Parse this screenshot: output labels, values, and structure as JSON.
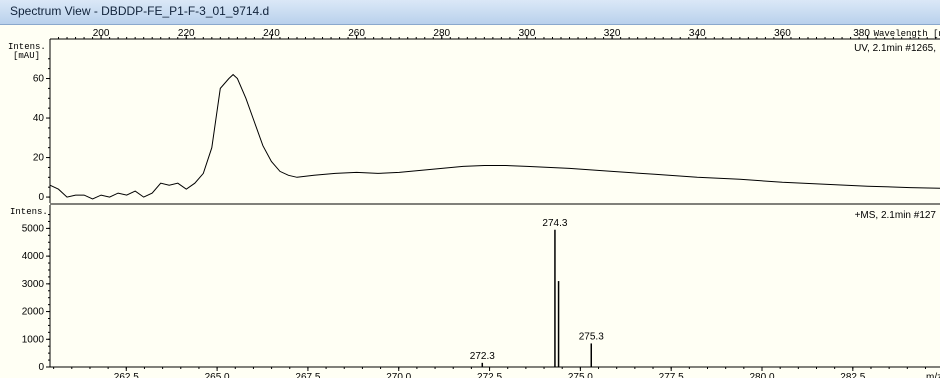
{
  "window": {
    "title": "Spectrum View - DBDDP-FE_P1-F-3_01_9714.d"
  },
  "colors": {
    "background": "#fffff4",
    "plot_line": "#000000",
    "titlebar": "#c8dbf1"
  },
  "chart_data": [
    {
      "type": "line",
      "name": "uv-spectrum",
      "ylabel": "Intens.\n[mAU]",
      "ylabel_lines": [
        "Intens.",
        "[mAU]"
      ],
      "xlabel": "Wavelength [nm]",
      "annotation": "UV, 2.1min #1265,",
      "xlim": [
        188,
        397
      ],
      "ylim": [
        -3,
        80
      ],
      "x_ticks": [
        "200",
        "220",
        "240",
        "260",
        "280",
        "300",
        "320",
        "340",
        "360",
        "380"
      ],
      "x_tick_values": [
        200,
        220,
        240,
        260,
        280,
        300,
        320,
        340,
        360,
        380
      ],
      "y_ticks": [
        "60",
        "40",
        "20",
        "0"
      ],
      "y_tick_values": [
        60,
        40,
        20,
        0
      ],
      "x": [
        188,
        190,
        192,
        194,
        196,
        198,
        200,
        202,
        204,
        206,
        208,
        210,
        212,
        214,
        216,
        218,
        220,
        222,
        224,
        226,
        228,
        230,
        231,
        232,
        234,
        236,
        238,
        240,
        242,
        244,
        246,
        248,
        250,
        255,
        260,
        265,
        270,
        275,
        280,
        285,
        290,
        295,
        300,
        310,
        320,
        330,
        340,
        350,
        360,
        370,
        380,
        390,
        397
      ],
      "y": [
        6,
        4,
        0,
        1,
        1,
        -1,
        1,
        0,
        2,
        1,
        3,
        0,
        2,
        7,
        6,
        7,
        4,
        7,
        12,
        25,
        55,
        60,
        62,
        60,
        50,
        38,
        26,
        18,
        13,
        11,
        10,
        10.5,
        11,
        12,
        12.5,
        12,
        12.5,
        13.5,
        14.5,
        15.5,
        16,
        16,
        15.5,
        14.5,
        13,
        11.5,
        10,
        9,
        7.5,
        6.5,
        5.5,
        4.8,
        4.5
      ]
    },
    {
      "type": "bar",
      "name": "ms-spectrum",
      "ylabel": "Intens.",
      "xlabel": "m/z",
      "annotation": "+MS, 2.1min #127",
      "xlim": [
        260.4,
        284.9
      ],
      "ylim": [
        0,
        5700
      ],
      "x_ticks": [
        "262.5",
        "265.0",
        "267.5",
        "270.0",
        "272.5",
        "275.0",
        "277.5",
        "280.0",
        "282.5"
      ],
      "x_tick_values": [
        262.5,
        265,
        267.5,
        270,
        272.5,
        275,
        277.5,
        280,
        282.5
      ],
      "y_ticks": [
        "5000",
        "4000",
        "3000",
        "2000",
        "1000",
        "0"
      ],
      "y_tick_values": [
        5000,
        4000,
        3000,
        2000,
        1000,
        0
      ],
      "peaks": [
        {
          "mz": 272.3,
          "intensity": 150,
          "label": "272.3"
        },
        {
          "mz": 274.3,
          "intensity": 4950,
          "label": "274.3"
        },
        {
          "mz": 274.4,
          "intensity": 3100,
          "label": ""
        },
        {
          "mz": 275.3,
          "intensity": 850,
          "label": "275.3"
        }
      ]
    }
  ]
}
